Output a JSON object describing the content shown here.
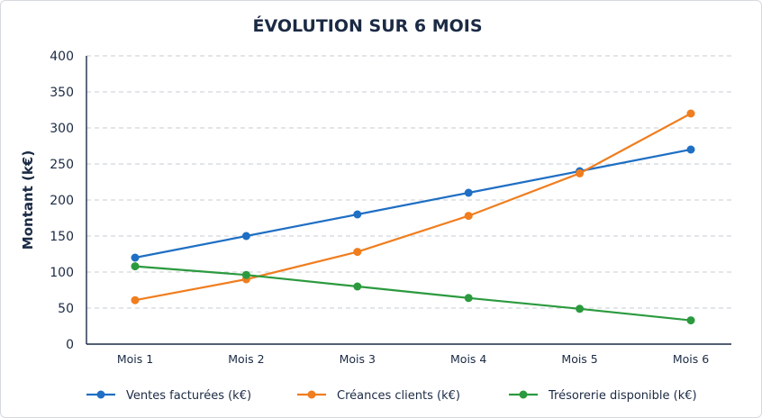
{
  "chart_data": {
    "type": "line",
    "title": "ÉVOLUTION SUR 6 MOIS",
    "xlabel": "",
    "ylabel": "Montant (k€)",
    "categories": [
      "Mois 1",
      "Mois 2",
      "Mois 3",
      "Mois 4",
      "Mois 5",
      "Mois 6"
    ],
    "ylim": [
      0,
      400
    ],
    "yticks": [
      0,
      50,
      100,
      150,
      200,
      250,
      300,
      350,
      400
    ],
    "grid": true,
    "legend_position": "bottom",
    "series": [
      {
        "name": "Ventes facturées (k€)",
        "color": "#1f6fc4",
        "values": [
          120,
          150,
          180,
          210,
          240,
          270
        ]
      },
      {
        "name": "Créances clients (k€)",
        "color": "#f07d1e",
        "values": [
          61,
          90,
          128,
          178,
          237,
          320
        ]
      },
      {
        "name": "Trésorerie disponible (k€)",
        "color": "#2b9a3e",
        "values": [
          108,
          96,
          80,
          64,
          49,
          33
        ]
      }
    ]
  }
}
